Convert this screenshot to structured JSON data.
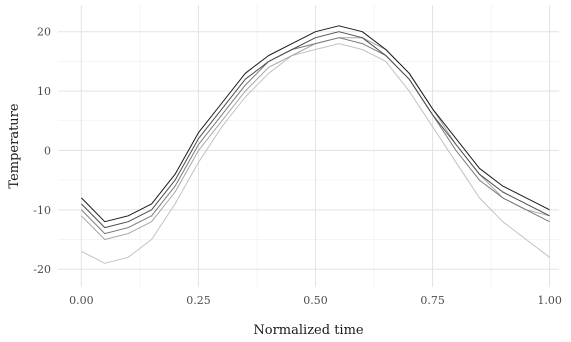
{
  "chart_data": {
    "type": "line",
    "xlabel": "Normalized time",
    "ylabel": "Temperature",
    "xlim": [
      -0.05,
      1.02
    ],
    "ylim": [
      -23,
      24.5
    ],
    "x_ticks": [
      0.0,
      0.25,
      0.5,
      0.75,
      1.0
    ],
    "x_tick_labels": [
      "0.00",
      "0.25",
      "0.50",
      "0.75",
      "1.00"
    ],
    "y_ticks": [
      -20,
      -10,
      0,
      10,
      20
    ],
    "y_tick_labels": [
      "-20",
      "-10",
      "0",
      "10",
      "20"
    ],
    "grid": true,
    "legend": "none",
    "series": [
      {
        "color": "#1a1a1a",
        "x": [
          0.0,
          0.05,
          0.1,
          0.15,
          0.2,
          0.25,
          0.3,
          0.35,
          0.4,
          0.45,
          0.5,
          0.55,
          0.6,
          0.65,
          0.7,
          0.75,
          0.8,
          0.85,
          0.9,
          0.95,
          1.0
        ],
        "y": [
          -8,
          -12,
          -11,
          -9,
          -4,
          3,
          8,
          13,
          16,
          18,
          20,
          21,
          20,
          17,
          13,
          7,
          2,
          -3,
          -6,
          -8,
          -10
        ]
      },
      {
        "color": "#4d4d4d",
        "x": [
          0.0,
          0.05,
          0.1,
          0.15,
          0.2,
          0.25,
          0.3,
          0.35,
          0.4,
          0.45,
          0.5,
          0.55,
          0.6,
          0.65,
          0.7,
          0.75,
          0.8,
          0.85,
          0.9,
          0.95,
          1.0
        ],
        "y": [
          -9,
          -13,
          -12,
          -10,
          -5,
          2,
          7,
          12,
          15,
          17,
          19,
          20,
          19,
          16,
          12,
          6,
          1,
          -4,
          -7,
          -9,
          -11
        ]
      },
      {
        "color": "#7a7a7a",
        "x": [
          0.0,
          0.05,
          0.1,
          0.15,
          0.2,
          0.25,
          0.3,
          0.35,
          0.4,
          0.45,
          0.5,
          0.55,
          0.6,
          0.65,
          0.7,
          0.75,
          0.8,
          0.85,
          0.9,
          0.95,
          1.0
        ],
        "y": [
          -10,
          -14,
          -13,
          -11,
          -6,
          1,
          6,
          11,
          15,
          17,
          18,
          19,
          18,
          16,
          12,
          6,
          0,
          -5,
          -8,
          -10,
          -12
        ]
      },
      {
        "color": "#a6a6a6",
        "x": [
          0.0,
          0.05,
          0.1,
          0.15,
          0.2,
          0.25,
          0.3,
          0.35,
          0.4,
          0.45,
          0.5,
          0.55,
          0.6,
          0.65,
          0.7,
          0.75,
          0.8,
          0.85,
          0.9,
          0.95,
          1.0
        ],
        "y": [
          -11,
          -15,
          -14,
          -12,
          -7,
          0,
          5,
          10,
          14,
          16,
          18,
          19,
          19,
          17,
          13,
          7,
          1,
          -4,
          -8,
          -10,
          -11
        ]
      },
      {
        "color": "#c2c2c2",
        "x": [
          0.0,
          0.05,
          0.1,
          0.15,
          0.2,
          0.25,
          0.3,
          0.35,
          0.4,
          0.45,
          0.5,
          0.55,
          0.6,
          0.65,
          0.7,
          0.75,
          0.8,
          0.85,
          0.9,
          0.95,
          1.0
        ],
        "y": [
          -17,
          -19,
          -18,
          -15,
          -9,
          -2,
          4,
          9,
          13,
          16,
          17,
          18,
          17,
          15,
          10,
          4,
          -2,
          -8,
          -12,
          -15,
          -18
        ]
      }
    ]
  }
}
